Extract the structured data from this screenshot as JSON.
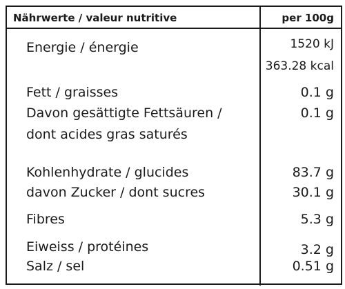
{
  "header": {
    "left": "Nährwerte / valeur nutritive",
    "right": "per 100g"
  },
  "rows": {
    "energy_label": "Energie / énergie",
    "energy_kj": "1520 kJ",
    "energy_kcal": "363.28 kcal",
    "fat_label": "Fett / graisses",
    "fat_value": "0.1 g",
    "sat_label_1": "Davon gesättigte Fettsäuren /",
    "sat_label_2": "dont acides gras saturés",
    "sat_value": "0.1 g",
    "carb_label": "Kohlenhydrate / glucides",
    "carb_value": "83.7 g",
    "sugar_label": "davon Zucker / dont sucres",
    "sugar_value": "30.1 g",
    "fibre_label": "Fibres",
    "fibre_value": "5.3 g",
    "protein_label": "Eiweiss / protéines",
    "protein_value": "3.2 g",
    "salt_label": "Salz / sel",
    "salt_value": "0.51 g"
  }
}
